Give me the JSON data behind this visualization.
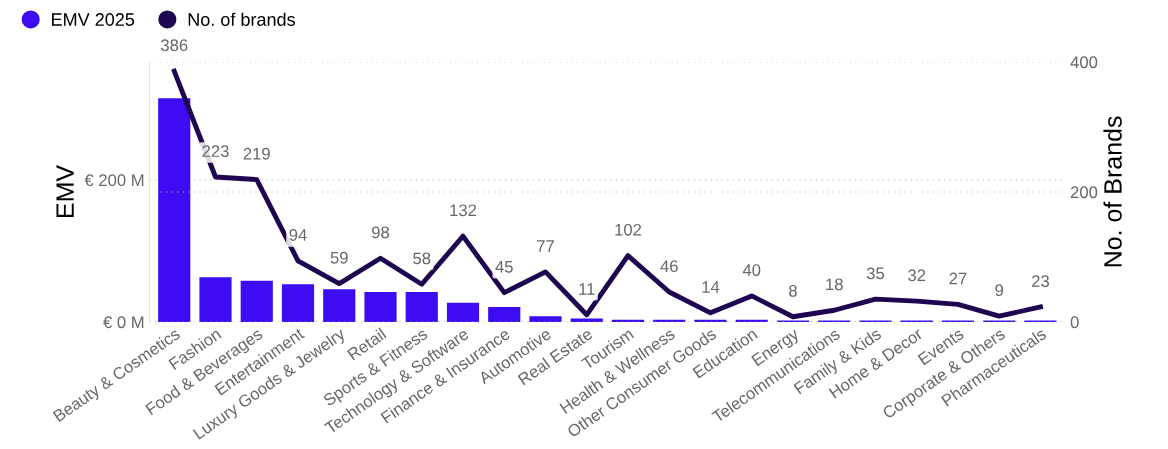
{
  "chart_data": {
    "type": "bar",
    "ylabel": "EMV",
    "y2label": "No. of Brands",
    "categories": [
      "Beauty & Cosmetics",
      "Fashion",
      "Food & Beverages",
      "Entertainment",
      "Luxury Goods & Jewelry",
      "Retail",
      "Sports & Fitness",
      "Technology & Software",
      "Finance & Insurance",
      "Automotive",
      "Real Estate",
      "Tourism",
      "Health & Wellness",
      "Other Consumer Goods",
      "Education",
      "Energy",
      "Telecommunications",
      "Family & Kids",
      "Home & Decor",
      "Events",
      "Corporate & Others",
      "Pharmaceuticals"
    ],
    "series": [
      {
        "name": "EMV 2025",
        "color": "#3d0cf2",
        "values": [
          315,
          63,
          58,
          53,
          46,
          42,
          42,
          27,
          21,
          8,
          5,
          3,
          3,
          3,
          3,
          2,
          2,
          2,
          2,
          2,
          2,
          2
        ]
      },
      {
        "name": "No. of brands",
        "type": "line",
        "axis": "y2",
        "color": "#1e0550",
        "data_labels": true,
        "values": [
          386,
          223,
          219,
          94,
          59,
          98,
          58,
          132,
          45,
          77,
          11,
          102,
          46,
          14,
          40,
          8,
          18,
          35,
          32,
          27,
          9,
          23
        ]
      }
    ],
    "ylim": [
      0,
      366
    ],
    "yticks": [
      {
        "value": 0,
        "label": "€ 0 M"
      },
      {
        "value": 200,
        "label": "€ 200 M"
      }
    ],
    "y2lim": [
      0,
      400
    ],
    "y2ticks": [
      0,
      200,
      400
    ],
    "grid": "y",
    "legend": "top left"
  }
}
